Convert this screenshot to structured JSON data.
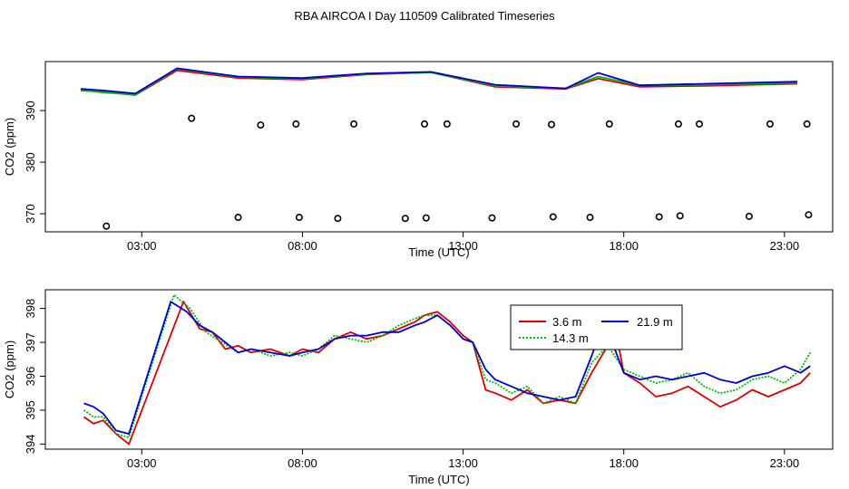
{
  "figure": {
    "title": "RBA AIRCOA I  Day 110509  Calibrated Timeseries"
  },
  "colors": {
    "red": "#dd0000",
    "green": "#00bb00",
    "blue": "#0000cc",
    "black": "#000000"
  },
  "chart_data": [
    {
      "type": "line",
      "id": "top",
      "title": "",
      "xlabel": "Time (UTC)",
      "ylabel": "CO2 (ppm)",
      "xlim": [
        0,
        24.5
      ],
      "ylim": [
        366.5,
        399.5
      ],
      "xticks": [
        3,
        8,
        13,
        18,
        23
      ],
      "xtick_labels": [
        "03:00",
        "08:00",
        "13:00",
        "18:00",
        "23:00"
      ],
      "yticks": [
        370,
        380,
        390
      ],
      "ytick_labels": [
        "370",
        "380",
        "390"
      ],
      "series": [
        {
          "name": "3.6 m",
          "color": "#dd0000",
          "x": [
            1.1,
            1.8,
            2.8,
            4.1,
            6.0,
            8.0,
            10.0,
            12.0,
            14.0,
            16.2,
            17.2,
            18.5,
            20.5,
            23.4
          ],
          "y": [
            393.9,
            393.6,
            393.0,
            397.8,
            396.3,
            396.0,
            397.0,
            397.4,
            394.6,
            394.2,
            396.2,
            394.6,
            394.8,
            395.2
          ]
        },
        {
          "name": "14.3 m",
          "color": "#00bb00",
          "x": [
            1.1,
            1.8,
            2.8,
            4.1,
            6.0,
            8.0,
            10.0,
            12.0,
            14.0,
            16.2,
            17.2,
            18.5,
            20.5,
            23.4
          ],
          "y": [
            394.0,
            393.5,
            393.1,
            398.1,
            396.5,
            396.2,
            397.1,
            397.4,
            394.8,
            394.3,
            396.6,
            394.9,
            395.0,
            395.4
          ]
        },
        {
          "name": "21.9 m",
          "color": "#0000cc",
          "x": [
            1.1,
            1.8,
            2.8,
            4.1,
            6.0,
            8.0,
            10.0,
            12.0,
            14.0,
            16.2,
            17.2,
            18.5,
            20.5,
            23.4
          ],
          "y": [
            394.2,
            393.9,
            393.3,
            398.2,
            396.6,
            396.3,
            397.2,
            397.5,
            395.0,
            394.3,
            397.3,
            394.9,
            395.2,
            395.6
          ]
        }
      ],
      "points": {
        "name": "calibration standards",
        "x": [
          1.9,
          4.55,
          6.0,
          6.7,
          7.8,
          7.9,
          9.1,
          9.6,
          11.2,
          11.8,
          11.85,
          12.5,
          13.9,
          14.65,
          15.75,
          15.8,
          16.95,
          17.55,
          19.1,
          19.7,
          19.75,
          20.35,
          21.9,
          22.55,
          23.7,
          23.75
        ],
        "y": [
          367.6,
          388.5,
          369.3,
          387.2,
          387.4,
          369.3,
          369.1,
          387.4,
          369.1,
          387.4,
          369.2,
          387.4,
          369.2,
          387.4,
          387.3,
          369.4,
          369.3,
          387.4,
          369.4,
          387.4,
          369.6,
          387.4,
          369.5,
          387.4,
          387.4,
          369.8
        ]
      }
    },
    {
      "type": "line",
      "id": "bottom",
      "title": "",
      "xlabel": "Time (UTC)",
      "ylabel": "CO2 (ppm)",
      "xlim": [
        0,
        24.5
      ],
      "ylim": [
        393.85,
        398.55
      ],
      "xticks": [
        3,
        8,
        13,
        18,
        23
      ],
      "xtick_labels": [
        "03:00",
        "08:00",
        "13:00",
        "18:00",
        "23:00"
      ],
      "yticks": [
        394,
        395,
        396,
        397,
        398
      ],
      "ytick_labels": [
        "394",
        "395",
        "396",
        "397",
        "398"
      ],
      "legend": "top-center",
      "series": [
        {
          "name": "3.6 m",
          "color": "#dd0000",
          "style": "solid",
          "x": [
            1.2,
            1.5,
            1.8,
            2.2,
            2.6,
            4.3,
            4.8,
            5.2,
            5.6,
            6.0,
            6.4,
            7.0,
            7.6,
            8.0,
            8.5,
            9.0,
            9.5,
            10.0,
            10.5,
            11.0,
            11.5,
            11.8,
            12.2,
            12.6,
            13.0,
            13.3,
            13.7,
            14.0,
            14.5,
            15.0,
            15.5,
            16.0,
            16.5,
            17.0,
            17.5,
            17.8,
            18.0,
            18.5,
            19.0,
            19.5,
            20.0,
            20.5,
            21.0,
            21.5,
            22.0,
            22.5,
            23.0,
            23.5,
            23.8
          ],
          "y": [
            394.8,
            394.6,
            394.7,
            394.3,
            394.0,
            398.2,
            397.4,
            397.3,
            396.8,
            396.9,
            396.7,
            396.8,
            396.6,
            396.8,
            396.7,
            397.1,
            397.3,
            397.1,
            397.2,
            397.4,
            397.6,
            397.8,
            397.9,
            397.6,
            397.2,
            397.0,
            395.6,
            395.5,
            395.3,
            395.6,
            395.2,
            395.3,
            395.2,
            396.1,
            396.9,
            397.1,
            396.1,
            395.8,
            395.4,
            395.5,
            395.7,
            395.4,
            395.1,
            395.3,
            395.6,
            395.4,
            395.6,
            395.8,
            396.1
          ]
        },
        {
          "name": "14.3 m",
          "color": "#00bb00",
          "style": "dotted",
          "x": [
            1.2,
            1.5,
            1.8,
            2.2,
            2.6,
            4.0,
            4.5,
            5.0,
            5.5,
            6.0,
            6.4,
            7.0,
            7.6,
            8.0,
            8.5,
            9.0,
            9.5,
            10.0,
            10.5,
            11.0,
            11.5,
            11.8,
            12.2,
            12.6,
            13.0,
            13.3,
            13.7,
            14.0,
            14.5,
            15.0,
            15.5,
            16.0,
            16.5,
            17.0,
            17.5,
            18.0,
            18.5,
            19.0,
            19.5,
            20.0,
            20.5,
            21.0,
            21.5,
            22.0,
            22.5,
            23.0,
            23.5,
            23.8
          ],
          "y": [
            395.0,
            394.8,
            394.8,
            394.3,
            394.2,
            398.4,
            398.0,
            397.3,
            397.0,
            396.7,
            396.8,
            396.6,
            396.7,
            396.6,
            396.8,
            397.2,
            397.1,
            397.0,
            397.2,
            397.5,
            397.7,
            397.8,
            397.8,
            397.5,
            397.1,
            397.0,
            395.9,
            395.8,
            395.5,
            395.7,
            395.2,
            395.4,
            395.2,
            396.4,
            396.9,
            396.2,
            396.0,
            395.8,
            395.9,
            396.1,
            395.7,
            395.5,
            395.6,
            395.9,
            396.0,
            395.8,
            396.2,
            396.7
          ]
        },
        {
          "name": "21.9 m",
          "color": "#0000cc",
          "style": "solid",
          "x": [
            1.2,
            1.5,
            1.8,
            2.2,
            2.6,
            3.9,
            4.4,
            4.8,
            5.2,
            5.6,
            6.0,
            6.4,
            7.0,
            7.6,
            8.0,
            8.5,
            9.0,
            9.5,
            10.0,
            10.5,
            11.0,
            11.5,
            11.8,
            12.2,
            12.6,
            13.0,
            13.3,
            13.7,
            14.0,
            14.5,
            15.0,
            15.5,
            16.0,
            16.5,
            17.0,
            17.3,
            17.6,
            18.0,
            18.5,
            19.0,
            19.5,
            20.0,
            20.5,
            21.0,
            21.5,
            22.0,
            22.5,
            23.0,
            23.5,
            23.8
          ],
          "y": [
            395.2,
            395.1,
            394.9,
            394.4,
            394.3,
            398.2,
            397.9,
            397.5,
            397.3,
            397.0,
            396.7,
            396.8,
            396.7,
            396.6,
            396.7,
            396.8,
            397.1,
            397.2,
            397.2,
            397.3,
            397.3,
            397.5,
            397.6,
            397.8,
            397.5,
            397.1,
            397.0,
            396.2,
            395.9,
            395.7,
            395.5,
            395.4,
            395.3,
            395.4,
            396.6,
            397.4,
            397.1,
            396.1,
            395.9,
            396.0,
            395.9,
            396.0,
            396.1,
            395.9,
            395.8,
            396.0,
            396.1,
            396.3,
            396.1,
            396.3
          ]
        }
      ]
    }
  ]
}
